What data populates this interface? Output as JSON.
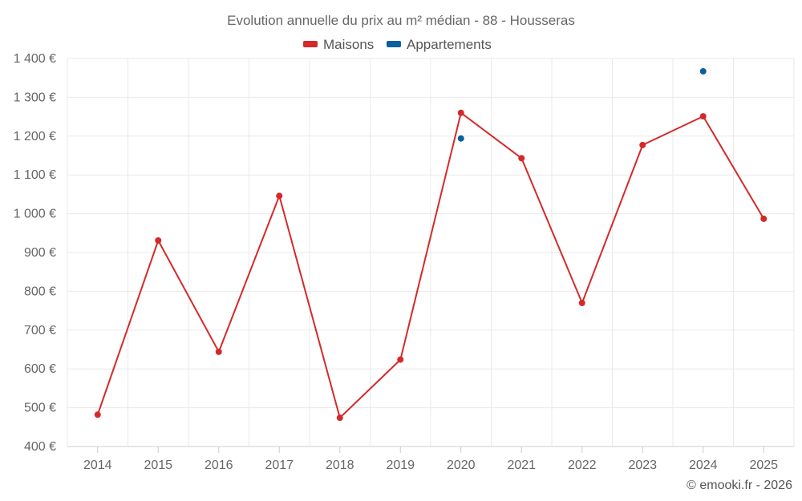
{
  "chart_data": {
    "type": "line",
    "title": "Evolution annuelle du prix au m² médian - 88 - Housseras",
    "categories": [
      "2014",
      "2015",
      "2016",
      "2017",
      "2018",
      "2019",
      "2020",
      "2021",
      "2022",
      "2023",
      "2024",
      "2025"
    ],
    "series": [
      {
        "name": "Maisons",
        "color": "#d42a2a",
        "values": [
          482,
          931,
          644,
          1046,
          474,
          624,
          1260,
          1143,
          770,
          1177,
          1251,
          987
        ]
      },
      {
        "name": "Appartements",
        "color": "#0a5f9e",
        "values": [
          null,
          null,
          null,
          null,
          null,
          null,
          1194,
          null,
          null,
          null,
          1367,
          null
        ]
      }
    ],
    "ylim": [
      400,
      1400
    ],
    "yticks": [
      400,
      500,
      600,
      700,
      800,
      900,
      1000,
      1100,
      1200,
      1300,
      1400
    ],
    "ytick_labels": [
      "400 €",
      "500 €",
      "600 €",
      "700 €",
      "800 €",
      "900 €",
      "1 000 €",
      "1 100 €",
      "1 200 €",
      "1 300 €",
      "1 400 €"
    ],
    "xlabel": "",
    "ylabel": "",
    "grid": true,
    "legend_position": "top-center"
  },
  "credit": "© emooki.fr - 2026"
}
